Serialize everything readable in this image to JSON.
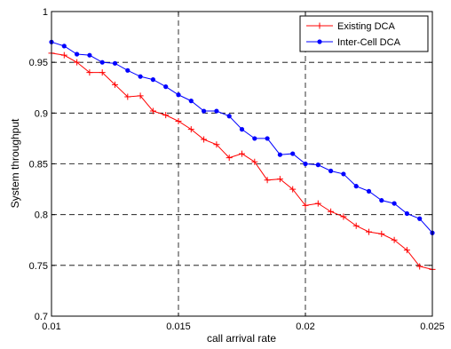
{
  "chart_data": {
    "type": "line",
    "xlabel": "call arrival rate",
    "ylabel": "System throughput",
    "xlim": [
      0.01,
      0.025
    ],
    "ylim": [
      0.7,
      1.0
    ],
    "xticks": [
      "0.01",
      "0.015",
      "0.02",
      "0.025"
    ],
    "yticks": [
      "0.7",
      "0.75",
      "0.8",
      "0.85",
      "0.9",
      "0.95",
      "1"
    ],
    "grid": true,
    "legend_position": "top-right",
    "series": [
      {
        "name": "Existing DCA",
        "color": "#ff0000",
        "marker": "plus",
        "x": [
          0.01,
          0.0105,
          0.011,
          0.0115,
          0.012,
          0.0125,
          0.013,
          0.0135,
          0.014,
          0.0145,
          0.015,
          0.0155,
          0.016,
          0.0165,
          0.017,
          0.0175,
          0.018,
          0.0185,
          0.019,
          0.0195,
          0.02,
          0.0205,
          0.021,
          0.0215,
          0.022,
          0.0225,
          0.023,
          0.0235,
          0.024,
          0.0245,
          0.025
        ],
        "values": [
          0.959,
          0.957,
          0.95,
          0.94,
          0.94,
          0.928,
          0.916,
          0.917,
          0.902,
          0.898,
          0.892,
          0.884,
          0.874,
          0.869,
          0.856,
          0.86,
          0.852,
          0.834,
          0.835,
          0.825,
          0.809,
          0.811,
          0.803,
          0.798,
          0.789,
          0.783,
          0.781,
          0.775,
          0.765,
          0.749,
          0.746
        ]
      },
      {
        "name": "Inter-Cell DCA",
        "color": "#0000ff",
        "marker": "dot",
        "x": [
          0.01,
          0.0105,
          0.011,
          0.0115,
          0.012,
          0.0125,
          0.013,
          0.0135,
          0.014,
          0.0145,
          0.015,
          0.0155,
          0.016,
          0.0165,
          0.017,
          0.0175,
          0.018,
          0.0185,
          0.019,
          0.0195,
          0.02,
          0.0205,
          0.021,
          0.0215,
          0.022,
          0.0225,
          0.023,
          0.0235,
          0.024,
          0.0245,
          0.025
        ],
        "values": [
          0.97,
          0.966,
          0.958,
          0.957,
          0.95,
          0.949,
          0.942,
          0.936,
          0.933,
          0.926,
          0.918,
          0.912,
          0.902,
          0.902,
          0.897,
          0.884,
          0.875,
          0.875,
          0.859,
          0.86,
          0.85,
          0.849,
          0.843,
          0.84,
          0.828,
          0.823,
          0.814,
          0.811,
          0.801,
          0.796,
          0.782
        ]
      }
    ]
  }
}
